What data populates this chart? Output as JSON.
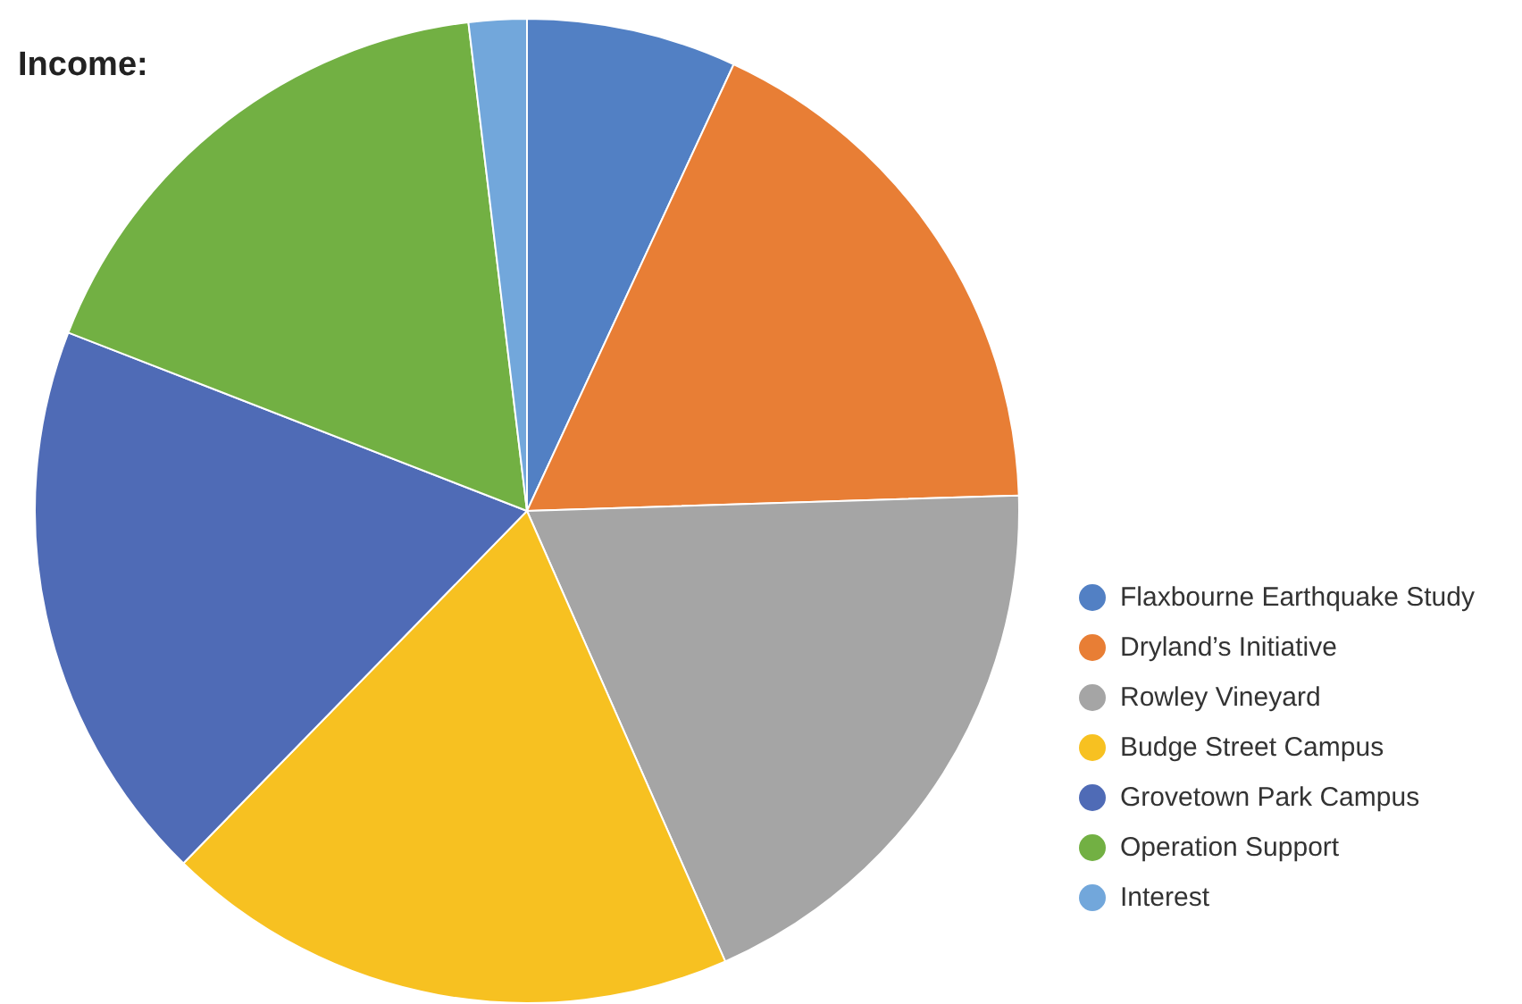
{
  "chart_data": {
    "type": "pie",
    "title": "Income:",
    "categories": [
      "Flaxbourne Earthquake Study",
      "Dryland’s Initiative",
      "Rowley Vineyard",
      "Budge Street Campus",
      "Grovetown Park Campus",
      "Operation Support",
      "Interest"
    ],
    "values": [
      6.9,
      17.6,
      18.9,
      18.9,
      18.6,
      17.2,
      1.9
    ],
    "colors": [
      "#5280c4",
      "#e87e35",
      "#a5a5a5",
      "#f7c121",
      "#4f6bb6",
      "#72b043",
      "#72a7db"
    ],
    "legend": "right"
  }
}
